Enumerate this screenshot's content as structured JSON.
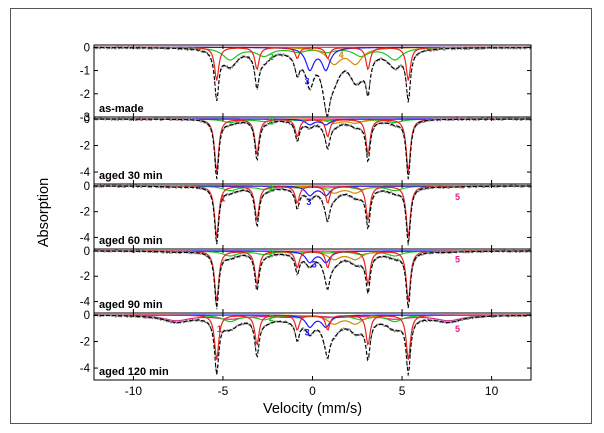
{
  "chart_data": {
    "type": "line",
    "title": "",
    "xlabel": "Velocity (mm/s)",
    "ylabel": "Absorption",
    "xlim": [
      -12.2,
      12.2
    ],
    "x_ticks": [
      -10,
      -5,
      0,
      5,
      10
    ],
    "grid": false,
    "panels": [
      {
        "label": "as-made",
        "ylim": [
          -3,
          0.1
        ],
        "y_ticks": [
          0,
          -1,
          -2,
          -3
        ],
        "total_depth": 2.95,
        "sextet1_scale": 0.55,
        "sextet2_scale": 0.5,
        "sextet5_scale": 0.0,
        "doublet_scale": 0.9,
        "spectral_labels": [
          {
            "text": "2",
            "x": -2.3,
            "y": -0.55,
            "color": "#1fc41f"
          },
          {
            "text": "3",
            "x": -0.3,
            "y": -1.6,
            "color": "#1a1aff"
          },
          {
            "text": "4",
            "x": 1.6,
            "y": -0.45,
            "color": "#d08a00"
          }
        ]
      },
      {
        "label": "aged 30 min",
        "ylim": [
          -4.9,
          0.15
        ],
        "y_ticks": [
          0,
          -2,
          -4
        ],
        "total_depth": 4.5,
        "sextet1_scale": 1.0,
        "sextet2_scale": 0.16,
        "sextet5_scale": 0.0,
        "doublet_scale": 0.26,
        "spectral_labels": [
          {
            "text": "2",
            "x": -2.3,
            "y": -0.4,
            "color": "#1fc41f"
          }
        ]
      },
      {
        "label": "aged 60 min",
        "ylim": [
          -4.9,
          0.15
        ],
        "y_ticks": [
          0,
          -2,
          -4
        ],
        "total_depth": 4.5,
        "sextet1_scale": 1.0,
        "sextet2_scale": 0.22,
        "sextet5_scale": 0.06,
        "doublet_scale": 0.45,
        "spectral_labels": [
          {
            "text": "1",
            "x": -5.0,
            "y": -1.2,
            "color": "#e8231c"
          },
          {
            "text": "2",
            "x": -2.3,
            "y": -0.45,
            "color": "#1fc41f"
          },
          {
            "text": "3",
            "x": -0.2,
            "y": -1.5,
            "color": "#1a1aff"
          },
          {
            "text": "5",
            "x": 8.1,
            "y": -1.1,
            "color": "#e0208a"
          }
        ]
      },
      {
        "label": "aged 90 min",
        "ylim": [
          -4.9,
          0.15
        ],
        "y_ticks": [
          0,
          -2,
          -4
        ],
        "total_depth": 4.5,
        "sextet1_scale": 1.0,
        "sextet2_scale": 0.24,
        "sextet5_scale": 0.08,
        "doublet_scale": 0.55,
        "spectral_labels": [
          {
            "text": "2",
            "x": -2.3,
            "y": -0.45,
            "color": "#1fc41f"
          },
          {
            "text": "3",
            "x": 0.1,
            "y": -1.3,
            "color": "#1a1aff"
          },
          {
            "text": "5",
            "x": 8.1,
            "y": -0.9,
            "color": "#e0208a"
          }
        ]
      },
      {
        "label": "aged 120 min",
        "ylim": [
          -4.9,
          0.15
        ],
        "y_ticks": [
          0,
          -2,
          -4
        ],
        "total_depth": 4.5,
        "sextet1_scale": 0.85,
        "sextet2_scale": 0.3,
        "sextet5_scale": 0.5,
        "doublet_scale": 0.55,
        "spectral_labels": [
          {
            "text": "1",
            "x": -5.2,
            "y": -1.3,
            "color": "#e8231c"
          },
          {
            "text": "2",
            "x": -2.3,
            "y": -0.45,
            "color": "#1fc41f"
          },
          {
            "text": "3",
            "x": -0.3,
            "y": -1.55,
            "color": "#1a1aff"
          },
          {
            "text": "5",
            "x": 8.1,
            "y": -1.3,
            "color": "#e0208a"
          }
        ]
      }
    ],
    "components": {
      "sextet1": {
        "lines": [
          -5.35,
          -3.1,
          -0.85,
          0.85,
          3.1,
          5.35
        ],
        "width": 0.28,
        "color": "#e8231c"
      },
      "sextet2": {
        "lines": [
          -4.6,
          -2.7,
          -0.8,
          0.8,
          2.7,
          4.6
        ],
        "width": 1.0,
        "color": "#1fc41f"
      },
      "sextet5": {
        "lines": [
          -7.6,
          -4.6,
          -1.5,
          1.5,
          4.6,
          7.6
        ],
        "width": 1.8,
        "color": "#e0208a"
      },
      "doublet3": {
        "lines": [
          -0.15,
          0.75
        ],
        "width": 0.55,
        "color": "#1a1aff"
      },
      "doublet4": {
        "lines": [
          1.2,
          2.4
        ],
        "width": 0.9,
        "color": "#d08a00"
      },
      "fit_color": "#000000",
      "data_color": "#8a8a8a"
    }
  }
}
